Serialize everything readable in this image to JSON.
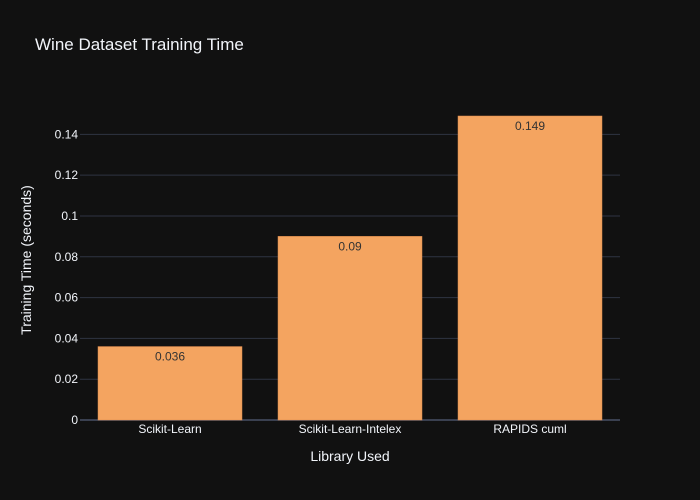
{
  "chart_data": {
    "type": "bar",
    "title": "Wine Dataset Training Time",
    "xlabel": "Library Used",
    "ylabel": "Training Time (seconds)",
    "categories": [
      "Scikit-Learn",
      "Scikit-Learn-Intelex",
      "RAPIDS cuml"
    ],
    "values": [
      0.036,
      0.09,
      0.149
    ],
    "data_labels": [
      "0.036",
      "0.09",
      "0.149"
    ],
    "yticks": [
      0,
      0.02,
      0.04,
      0.06,
      0.08,
      0.1,
      0.12,
      0.14
    ],
    "ytick_labels": [
      "0",
      "0.02",
      "0.04",
      "0.06",
      "0.08",
      "0.1",
      "0.12",
      "0.14"
    ],
    "ylim": [
      0,
      0.15684
    ],
    "grid": true,
    "colors": {
      "background": "#111111",
      "bar": "#F4A460",
      "bar_outline": "#E08B4D",
      "grid": "#2F3442",
      "text": "#F2F5FA",
      "tick_text": "#F2F5FA",
      "label_text": "#333333"
    }
  }
}
